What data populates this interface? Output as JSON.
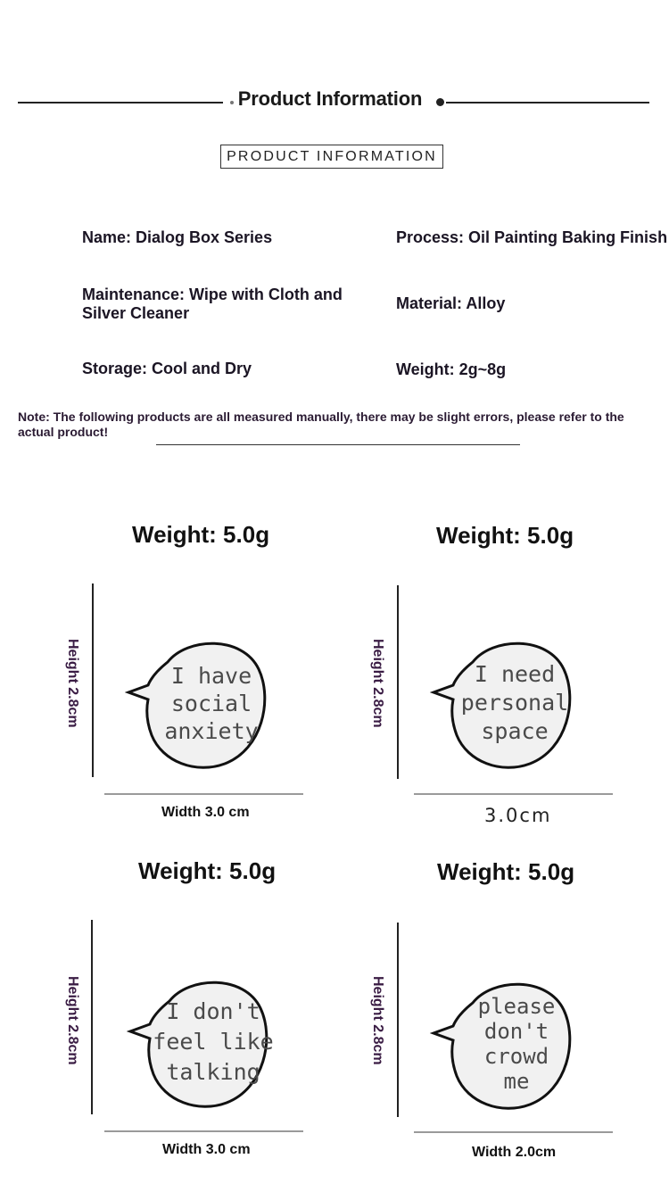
{
  "header": {
    "title": "Product Information",
    "badge": "PRODUCT INFORMATION"
  },
  "info": {
    "name": "Name: Dialog Box Series",
    "process": "Process: Oil Painting Baking Finish",
    "maintenance_line1": "Maintenance: Wipe with Cloth and",
    "maintenance_line2": "Silver Cleaner",
    "material": "Material: Alloy",
    "storage": "Storage: Cool and Dry",
    "weight": "Weight: 2g~8g"
  },
  "note": "Note: The following products are all measured manually, there may be slight errors, please refer to the actual product!",
  "products": [
    {
      "weight": "Weight: 5.0g",
      "height": "Height 2.8cm",
      "width": "Width 3.0 cm",
      "lines": [
        "I have",
        "social",
        "anxiety"
      ]
    },
    {
      "weight": "Weight: 5.0g",
      "height": "Height 2.8cm",
      "width": "3.0cm",
      "lines": [
        "I need",
        "personal",
        "space"
      ]
    },
    {
      "weight": "Weight: 5.0g",
      "height": "Height 2.8cm",
      "width": "Width 3.0 cm",
      "lines": [
        "I don't",
        "feel like",
        "talking"
      ]
    },
    {
      "weight": "Weight: 5.0g",
      "height": "Height 2.8cm",
      "width": "Width 2.0cm",
      "lines": [
        "please",
        "don't",
        "crowd",
        "me"
      ]
    }
  ]
}
